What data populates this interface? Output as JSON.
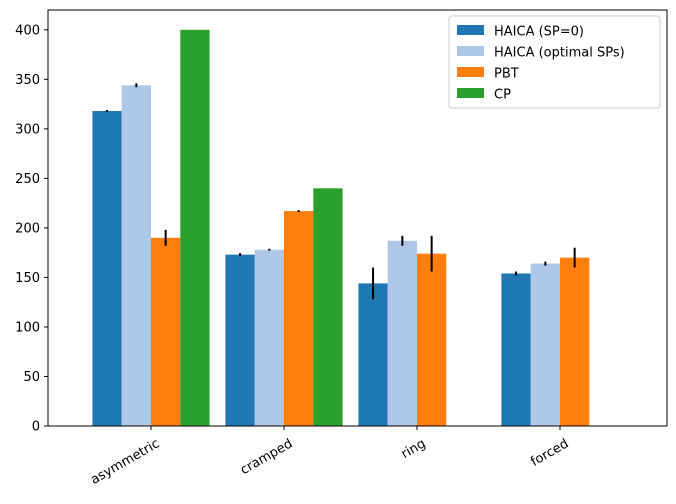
{
  "chart_data": {
    "type": "bar",
    "categories": [
      "asymmetric",
      "cramped",
      "ring",
      "forced"
    ],
    "series": [
      {
        "name": "HAICA (SP=0)",
        "color": "#1f77b4",
        "values": [
          318,
          173,
          144,
          154
        ],
        "errors": [
          1,
          1.5,
          16,
          2
        ]
      },
      {
        "name": "HAICA (optimal SPs)",
        "color": "#aec7e8",
        "values": [
          344,
          178,
          187,
          164
        ],
        "errors": [
          2,
          1,
          5,
          2
        ]
      },
      {
        "name": "PBT",
        "color": "#ff7f0e",
        "values": [
          190,
          217,
          174,
          170
        ],
        "errors": [
          8,
          1,
          18,
          10
        ]
      },
      {
        "name": "CP",
        "color": "#2ca02c",
        "values": [
          400,
          240,
          null,
          null
        ],
        "errors": [
          0,
          0,
          0,
          0
        ]
      }
    ],
    "ylim": [
      0,
      420
    ],
    "yticks": [
      0,
      50,
      100,
      150,
      200,
      250,
      300,
      350,
      400
    ],
    "xtick_rotation": 30,
    "legend_position": "top-right",
    "grid": false
  }
}
